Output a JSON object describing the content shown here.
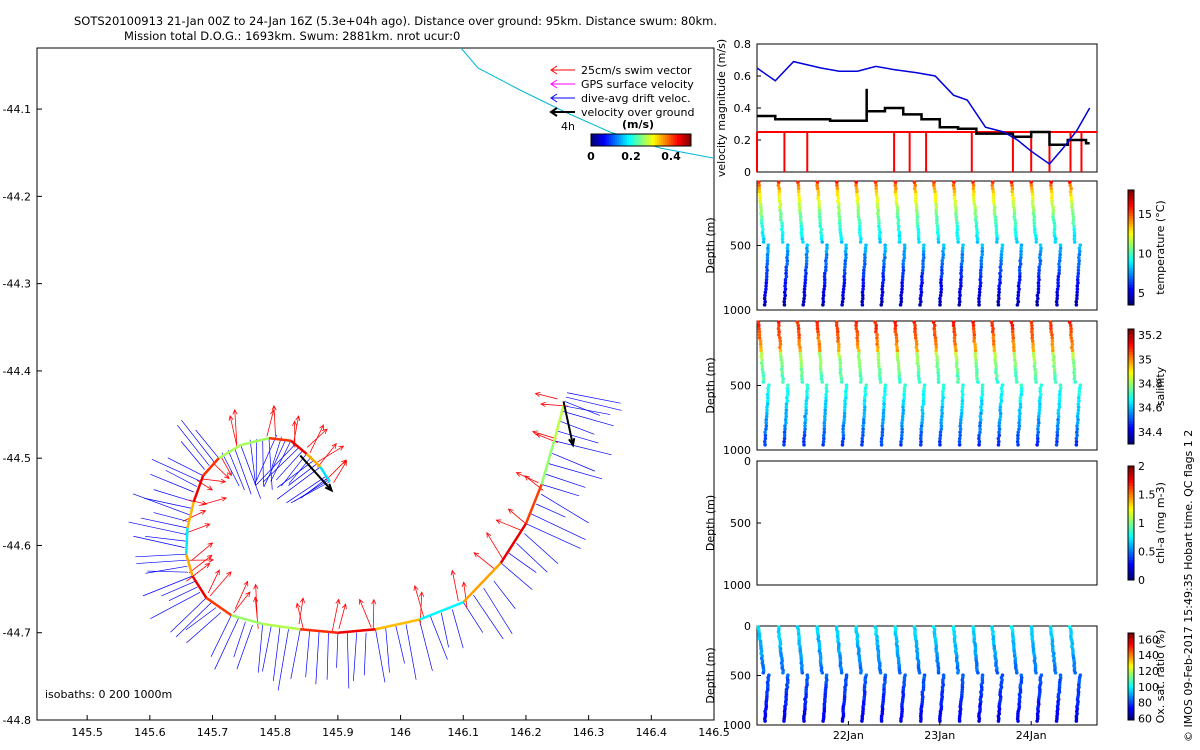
{
  "title": {
    "line1": "SOTS20100913 21-Jan 00Z to 24-Jan 16Z (5.3e+04h ago). Distance over ground: 95km. Distance swum: 80km.",
    "line2": "Mission total D.O.G.: 1693km. Swum: 2881km. nrot ucur:0"
  },
  "footer": {
    "side_text": "© IMOS 09-Feb-2017 15:49:35 Hobart time. QC flags 1  2"
  },
  "colors": {
    "swim_vector": "#ff0000",
    "gps_surface_velocity": "#ff00ff",
    "dive_avg_drift": "#0000ff",
    "velocity_over_ground": "#000000",
    "track_line": "#00b8d8",
    "velocity_red_line": "#ff0000",
    "velocity_blue_line": "#0000dd"
  },
  "chart_data": [
    {
      "type": "scatter",
      "name": "map",
      "xlim": [
        145.42,
        146.5
      ],
      "ylim": [
        -44.8,
        -44.03
      ],
      "x_ticks": [
        145.5,
        145.6,
        145.7,
        145.8,
        145.9,
        146.0,
        146.1,
        146.2,
        146.3,
        146.4,
        146.5
      ],
      "x_tick_labels": [
        "145.5",
        "145.6",
        "145.7",
        "145.8",
        "145.9",
        "146",
        "146.1",
        "146.2",
        "146.3",
        "146.4",
        "146.5"
      ],
      "y_ticks": [
        -44.1,
        -44.2,
        -44.3,
        -44.4,
        -44.5,
        -44.6,
        -44.7,
        -44.8
      ],
      "y_tick_labels": [
        "-44.1",
        "-44.2",
        "-44.3",
        "-44.4",
        "-44.5",
        "-44.6",
        "-44.7",
        "-44.8"
      ],
      "legend": {
        "entries": [
          "25cm/s swim vector",
          "GPS surface velocity",
          "dive-avg drift veloc.",
          "velocity over ground"
        ],
        "colorbar_label": "(m/s)",
        "colorbar_ticks": [
          "0",
          "0.2",
          "0.4"
        ],
        "colorbar_range": [
          0,
          0.5
        ],
        "annotation": "4h"
      },
      "isobaths_label": "isobaths: 0   200  1000m",
      "track": [
        {
          "x": 145.887,
          "y": -44.527
        },
        {
          "x": 145.872,
          "y": -44.51
        },
        {
          "x": 145.85,
          "y": -44.495
        },
        {
          "x": 145.825,
          "y": -44.48
        },
        {
          "x": 145.79,
          "y": -44.477
        },
        {
          "x": 145.745,
          "y": -44.485
        },
        {
          "x": 145.71,
          "y": -44.5
        },
        {
          "x": 145.685,
          "y": -44.52
        },
        {
          "x": 145.67,
          "y": -44.55
        },
        {
          "x": 145.66,
          "y": -44.58
        },
        {
          "x": 145.658,
          "y": -44.61
        },
        {
          "x": 145.668,
          "y": -44.635
        },
        {
          "x": 145.69,
          "y": -44.66
        },
        {
          "x": 145.73,
          "y": -44.68
        },
        {
          "x": 145.78,
          "y": -44.69
        },
        {
          "x": 145.84,
          "y": -44.696
        },
        {
          "x": 145.9,
          "y": -44.7
        },
        {
          "x": 145.96,
          "y": -44.696
        },
        {
          "x": 146.03,
          "y": -44.685
        },
        {
          "x": 146.1,
          "y": -44.665
        },
        {
          "x": 146.16,
          "y": -44.62
        },
        {
          "x": 146.2,
          "y": -44.575
        },
        {
          "x": 146.225,
          "y": -44.53
        },
        {
          "x": 146.245,
          "y": -44.48
        },
        {
          "x": 146.26,
          "y": -44.44
        }
      ],
      "velocity_over_ground_arrows": [
        {
          "x": 145.84,
          "y": -44.497,
          "u": 0.05,
          "v": -0.04
        },
        {
          "x": 146.26,
          "y": -44.435,
          "u": 0.015,
          "v": -0.05
        }
      ]
    },
    {
      "type": "line",
      "name": "velocity",
      "ylabel": "velocity magnitude (m/s)",
      "ylim": [
        0,
        0.8
      ],
      "y_ticks": [
        0,
        0.2,
        0.4,
        0.6,
        0.8
      ],
      "y_tick_labels": [
        "0",
        "0.2",
        "0.4",
        "0.6",
        "0.8"
      ],
      "xlim": [
        21.0,
        24.72
      ],
      "series": [
        {
          "color": "#0000dd",
          "x": [
            21.0,
            21.2,
            21.4,
            21.7,
            21.9,
            22.1,
            22.3,
            22.5,
            22.75,
            22.95,
            23.15,
            23.3,
            23.5,
            23.7,
            23.85,
            24.0,
            24.2,
            24.35,
            24.5,
            24.64
          ],
          "y": [
            0.65,
            0.57,
            0.69,
            0.65,
            0.63,
            0.63,
            0.66,
            0.64,
            0.62,
            0.6,
            0.48,
            0.45,
            0.28,
            0.25,
            0.2,
            0.13,
            0.05,
            0.15,
            0.26,
            0.4
          ]
        },
        {
          "color": "#000000",
          "x": [
            21.0,
            21.2,
            21.4,
            21.6,
            21.8,
            22.0,
            22.2,
            22.4,
            22.6,
            22.8,
            23.0,
            23.2,
            23.4,
            23.6,
            23.8,
            24.0,
            24.2,
            24.4,
            24.6
          ],
          "y": [
            0.35,
            0.33,
            0.33,
            0.33,
            0.32,
            0.32,
            0.38,
            0.4,
            0.36,
            0.33,
            0.28,
            0.27,
            0.24,
            0.24,
            0.22,
            0.25,
            0.17,
            0.2,
            0.18
          ]
        },
        {
          "color": "#ff0000",
          "x": [
            21.0,
            24.72
          ],
          "y": [
            0.25,
            0.25
          ]
        }
      ]
    },
    {
      "type": "scatter",
      "name": "temperature",
      "ylabel": "Depth (m)",
      "ylim": [
        0,
        1000
      ],
      "y_ticks": [
        500,
        1000
      ],
      "y_tick_labels": [
        "500",
        "1000"
      ],
      "colorbar_label": "temperature (°C)",
      "colorbar_ticks": [
        "15",
        "10",
        "5"
      ],
      "colorbar_range": [
        3.5,
        18
      ],
      "surface_value": 16,
      "deep_value": 4,
      "x_range": [
        21.0,
        24.64
      ]
    },
    {
      "type": "scatter",
      "name": "salinity",
      "ylabel": "Depth (m)",
      "ylim": [
        0,
        1000
      ],
      "y_ticks": [
        500,
        1000
      ],
      "y_tick_labels": [
        "500",
        "1000"
      ],
      "colorbar_label": "salinity",
      "colorbar_ticks": [
        "35.2",
        "35",
        "34.8",
        "34.6",
        "34.4"
      ],
      "colorbar_range": [
        34.3,
        35.25
      ],
      "surface_value": 35.15,
      "deep_value": 34.45,
      "x_range": [
        21.0,
        24.64
      ]
    },
    {
      "type": "scatter",
      "name": "chl-a",
      "ylabel": "Depth (m)",
      "ylim": [
        0,
        1000
      ],
      "y_ticks": [
        0,
        500,
        1000
      ],
      "y_tick_labels": [
        "0",
        "500",
        "1000"
      ],
      "colorbar_label": "chl-a (mg m-3)",
      "colorbar_ticks": [
        "2",
        "1.5",
        "1",
        "0.5",
        "0"
      ],
      "colorbar_range": [
        0,
        2
      ],
      "x_range": [
        21.0,
        24.64
      ]
    },
    {
      "type": "scatter",
      "name": "oxygen",
      "ylabel": "Depth (m)",
      "ylim": [
        0,
        1000
      ],
      "y_ticks": [
        0,
        500,
        1000
      ],
      "y_tick_labels": [
        "0",
        "500",
        "1000"
      ],
      "colorbar_label": "Ox. sat. ratio (%)",
      "colorbar_ticks": [
        "160",
        "140",
        "120",
        "100",
        "80",
        "60"
      ],
      "colorbar_range": [
        58,
        168
      ],
      "surface_value": 95,
      "deep_value": 62,
      "x_ticks": [
        22,
        23,
        24
      ],
      "x_tick_labels": [
        "22Jan",
        "23Jan",
        "24Jan"
      ],
      "x_range": [
        21.0,
        24.64
      ]
    }
  ]
}
